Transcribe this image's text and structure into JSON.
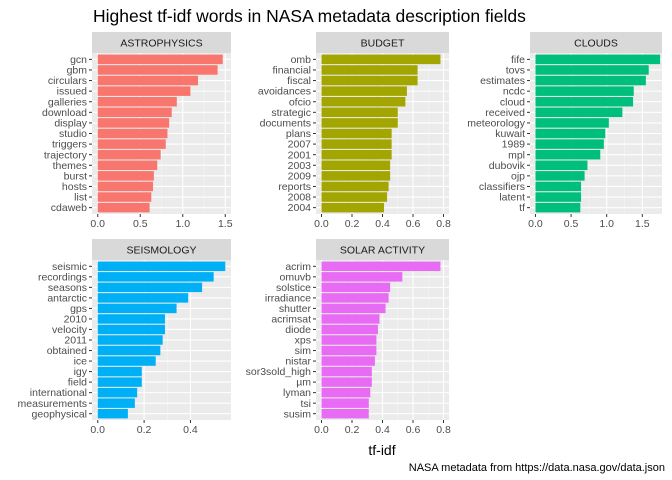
{
  "title": "Highest tf-idf words in NASA metadata description fields",
  "caption": "NASA metadata from https://data.nasa.gov/data.json",
  "chart_data": {
    "type": "bar",
    "orientation": "horizontal",
    "xlabel": "tf-idf",
    "ylabel": "",
    "grid": true,
    "legend": "none",
    "facets": [
      {
        "name": "ASTROPHYSICS",
        "color": "#F8766D",
        "xlim": [
          0,
          1.5
        ],
        "ticks": [
          0.0,
          0.5,
          1.0,
          1.5
        ],
        "tick_labels": [
          "0.0",
          "0.5",
          "1.0",
          "1.5"
        ],
        "categories": [
          "gcn",
          "gbm",
          "circulars",
          "issued",
          "galleries",
          "download",
          "display",
          "studio",
          "triggers",
          "trajectory",
          "themes",
          "burst",
          "hosts",
          "list",
          "cdaweb"
        ],
        "values": [
          1.47,
          1.41,
          1.18,
          1.09,
          0.93,
          0.87,
          0.84,
          0.82,
          0.8,
          0.74,
          0.7,
          0.66,
          0.65,
          0.63,
          0.61
        ]
      },
      {
        "name": "BUDGET",
        "color": "#A3A500",
        "xlim": [
          0,
          0.8
        ],
        "ticks": [
          0.0,
          0.2,
          0.4,
          0.6,
          0.8
        ],
        "tick_labels": [
          "0.0",
          "0.2",
          "0.4",
          "0.6",
          "0.8"
        ],
        "categories": [
          "omb",
          "financial",
          "fiscal",
          "avoidances",
          "ofcio",
          "strategic",
          "documents",
          "plans",
          "2007",
          "2001",
          "2003",
          "2009",
          "reports",
          "2008",
          "2004"
        ],
        "values": [
          0.78,
          0.63,
          0.63,
          0.56,
          0.55,
          0.5,
          0.5,
          0.46,
          0.46,
          0.46,
          0.45,
          0.45,
          0.44,
          0.43,
          0.41
        ]
      },
      {
        "name": "CLOUDS",
        "color": "#00BF7D",
        "xlim": [
          0,
          1.7
        ],
        "ticks": [
          0.0,
          0.5,
          1.0,
          1.5
        ],
        "tick_labels": [
          "0.0",
          "0.5",
          "1.0",
          "1.5"
        ],
        "categories": [
          "fife",
          "tovs",
          "estimates",
          "ncdc",
          "cloud",
          "received",
          "meteorology",
          "kuwait",
          "1989",
          "mpl",
          "dubovik",
          "ojp",
          "classifiers",
          "latent",
          "tf"
        ],
        "values": [
          1.75,
          1.59,
          1.55,
          1.38,
          1.37,
          1.22,
          1.03,
          0.98,
          0.96,
          0.91,
          0.73,
          0.69,
          0.64,
          0.64,
          0.63
        ]
      },
      {
        "name": "SEISMOLOGY",
        "color": "#00B0F6",
        "xlim": [
          0,
          0.55
        ],
        "ticks": [
          0.0,
          0.2,
          0.4
        ],
        "tick_labels": [
          "0.0",
          "0.2",
          "0.4"
        ],
        "categories": [
          "seismic",
          "recordings",
          "seasons",
          "antarctic",
          "gps",
          "2010",
          "velocity",
          "2011",
          "obtained",
          "ice",
          "igy",
          "field",
          "international",
          "measurements",
          "geophysical"
        ],
        "values": [
          0.55,
          0.5,
          0.45,
          0.39,
          0.34,
          0.29,
          0.29,
          0.28,
          0.27,
          0.25,
          0.19,
          0.19,
          0.17,
          0.16,
          0.13
        ]
      },
      {
        "name": "SOLAR ACTIVITY",
        "color": "#E76BF3",
        "xlim": [
          0,
          0.8
        ],
        "ticks": [
          0.0,
          0.2,
          0.4,
          0.6,
          0.8
        ],
        "tick_labels": [
          "0.0",
          "0.2",
          "0.4",
          "0.6",
          "0.8"
        ],
        "categories": [
          "acrim",
          "omuvb",
          "solstice",
          "irradiance",
          "shutter",
          "acrimsat",
          "diode",
          "xps",
          "sim",
          "nistar",
          "sor3sold_high",
          "µm",
          "lyman",
          "tsi",
          "susim"
        ],
        "values": [
          0.78,
          0.53,
          0.45,
          0.44,
          0.42,
          0.38,
          0.37,
          0.36,
          0.36,
          0.35,
          0.33,
          0.33,
          0.32,
          0.31,
          0.31
        ]
      }
    ]
  }
}
